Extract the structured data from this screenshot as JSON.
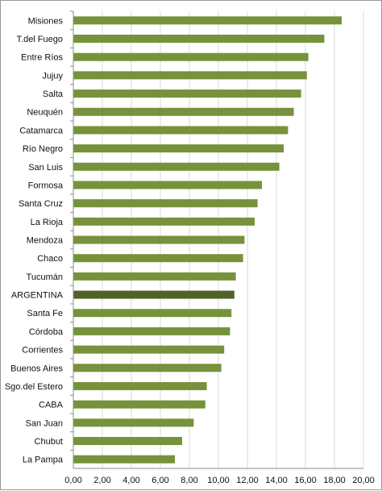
{
  "chart_data": {
    "type": "bar",
    "orientation": "horizontal",
    "title": "",
    "xlabel": "",
    "ylabel": "",
    "xlim": [
      0,
      20
    ],
    "grid": true,
    "legend": "none",
    "colors": {
      "bar": "#76923c",
      "highlight": "#4f6228",
      "grid": "#d9d9d9",
      "axis": "#8c8c8c"
    },
    "highlight": "ARGENTINA",
    "categories": [
      "Misiones",
      "T.del Fuego",
      "Entre Ríos",
      "Jujuy",
      "Salta",
      "Neuquén",
      "Catamarca",
      "Río Negro",
      "San Luis",
      "Formosa",
      "Santa Cruz",
      "La Rioja",
      "Mendoza",
      "Chaco",
      "Tucumán",
      "ARGENTINA",
      "Santa Fe",
      "Córdoba",
      "Corrientes",
      "Buenos Aires",
      "Sgo.del Estero",
      "CABA",
      "San Juan",
      "Chubut",
      "La Pampa"
    ],
    "values": [
      18.5,
      17.3,
      16.2,
      16.1,
      15.7,
      15.2,
      14.8,
      14.5,
      14.2,
      13.0,
      12.7,
      12.5,
      11.8,
      11.7,
      11.2,
      11.1,
      10.9,
      10.8,
      10.4,
      10.2,
      9.2,
      9.1,
      8.3,
      7.5,
      7.0
    ],
    "xticks": [
      "0,00",
      "2,00",
      "4,00",
      "6,00",
      "8,00",
      "10,00",
      "12,00",
      "14,00",
      "16,00",
      "18,00",
      "20,00"
    ]
  }
}
